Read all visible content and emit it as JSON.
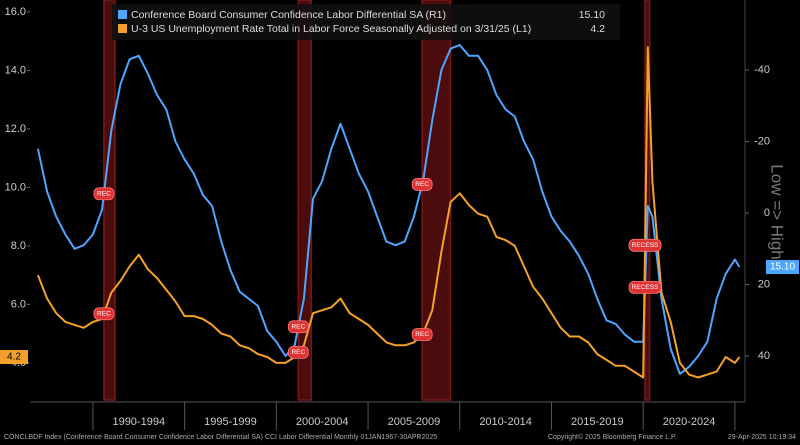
{
  "chart_data": {
    "type": "line",
    "legend": [
      {
        "name": "Conference Board Consumer Confidence Labor Differential SA  (R1)",
        "value": "15.10"
      },
      {
        "name": "U-3 US Unemployment Rate Total in Labor Force Seasonally Adjusted on 3/31/25 (L1)",
        "value": "4.2"
      }
    ],
    "x": [
      1987,
      1987.5,
      1988,
      1988.5,
      1989,
      1989.5,
      1990,
      1990.5,
      1991,
      1991.5,
      1992,
      1992.5,
      1993,
      1993.5,
      1994,
      1994.5,
      1995,
      1995.5,
      1996,
      1996.5,
      1997,
      1997.5,
      1998,
      1998.5,
      1999,
      1999.5,
      2000,
      2000.5,
      2001,
      2001.5,
      2002,
      2002.5,
      2003,
      2003.5,
      2004,
      2004.5,
      2005,
      2005.5,
      2006,
      2006.5,
      2007,
      2007.5,
      2008,
      2008.5,
      2009,
      2009.5,
      2010,
      2010.5,
      2011,
      2011.5,
      2012,
      2012.5,
      2013,
      2013.5,
      2014,
      2014.5,
      2015,
      2015.5,
      2016,
      2016.5,
      2017,
      2017.5,
      2018,
      2018.5,
      2019,
      2019.5,
      2020,
      2020.25,
      2020.5,
      2021,
      2021.5,
      2022,
      2022.5,
      2023,
      2023.5,
      2024,
      2024.5,
      2025,
      2025.25
    ],
    "series": [
      {
        "name": "Conference Board Consumer Confidence Labor Differential SA  (R1)",
        "color": "#4da6ff",
        "axis": "y2",
        "values": [
          -18,
          -6,
          1,
          6,
          10,
          9,
          6,
          -1,
          -23,
          -36,
          -43,
          -44,
          -39,
          -33,
          -29,
          -20,
          -15,
          -11,
          -5,
          -2,
          8,
          16,
          22,
          24,
          26,
          33,
          36,
          40,
          37,
          24,
          -4,
          -9,
          -18,
          -25,
          -18,
          -11,
          -6,
          1,
          8,
          9,
          8,
          1,
          -9,
          -26,
          -40,
          -46,
          -47,
          -44,
          -44,
          -40,
          -33,
          -29,
          -27,
          -20,
          -15,
          -6,
          1,
          5,
          8,
          12,
          17,
          24,
          30,
          31,
          34,
          36,
          36,
          -2,
          1,
          24,
          38,
          45,
          43,
          40,
          36,
          24,
          17,
          13,
          15.1
        ],
        "last_label": "15.10"
      },
      {
        "name": "U-3 US Unemployment Rate Total in Labor Force Seasonally Adjusted on 3/31/25 (L1)",
        "color": "#f5a02a",
        "values": [
          7.0,
          6.2,
          5.7,
          5.4,
          5.3,
          5.2,
          5.4,
          5.5,
          6.4,
          6.8,
          7.3,
          7.7,
          7.2,
          6.9,
          6.5,
          6.1,
          5.6,
          5.6,
          5.5,
          5.3,
          5.0,
          4.9,
          4.6,
          4.5,
          4.3,
          4.2,
          4.0,
          4.0,
          4.2,
          4.6,
          5.7,
          5.8,
          5.9,
          6.2,
          5.7,
          5.5,
          5.3,
          5.0,
          4.7,
          4.6,
          4.6,
          4.7,
          5.0,
          5.8,
          7.8,
          9.5,
          9.8,
          9.4,
          9.1,
          9.0,
          8.3,
          8.2,
          8.0,
          7.3,
          6.6,
          6.2,
          5.7,
          5.2,
          4.9,
          4.9,
          4.7,
          4.3,
          4.1,
          3.9,
          3.9,
          3.7,
          3.5,
          14.8,
          10.2,
          6.4,
          5.4,
          4.0,
          3.6,
          3.5,
          3.6,
          3.7,
          4.2,
          4.0,
          4.2
        ],
        "last_label": "4.2"
      }
    ],
    "xlim": [
      1986.57,
      2025.55
    ],
    "x_periods": [
      {
        "start": 1990,
        "end": 1995,
        "label": "1990-1994"
      },
      {
        "start": 1995,
        "end": 2000,
        "label": "1995-1999"
      },
      {
        "start": 2000,
        "end": 2005,
        "label": "2000-2004"
      },
      {
        "start": 2005,
        "end": 2010,
        "label": "2005-2009"
      },
      {
        "start": 2010,
        "end": 2015,
        "label": "2010-2014"
      },
      {
        "start": 2015,
        "end": 2020,
        "label": "2015-2019"
      },
      {
        "start": 2020,
        "end": 2025,
        "label": "2020-2024"
      }
    ],
    "ylim": [
      2.73,
      16.41
    ],
    "yticks": [
      {
        "value": 4,
        "label": "4.0"
      },
      {
        "value": 6,
        "label": "6.0"
      },
      {
        "value": 8,
        "label": "8.0"
      },
      {
        "value": 10,
        "label": "10.0"
      },
      {
        "value": 12,
        "label": "12.0"
      },
      {
        "value": 14,
        "label": "14.0"
      },
      {
        "value": 16,
        "label": "16.0"
      }
    ],
    "y2lim": [
      52.3,
      -59.6
    ],
    "y2ticks": [
      40,
      20,
      0,
      -20,
      -40
    ],
    "y2_note": "Low => High",
    "recessions": [
      {
        "start": 1990.6,
        "end": 1991.2,
        "label": "REC"
      },
      {
        "start": 2001.2,
        "end": 2001.9,
        "label": "REC"
      },
      {
        "start": 2007.95,
        "end": 2009.5,
        "label": "REC"
      },
      {
        "start": 2020.1,
        "end": 2020.35,
        "label": "RECESS"
      }
    ],
    "footer": {
      "source": "CONCLBDF Index (Conference Board Consumer Confidence Labor Differential SA) CCI Labor Differential  Monthly 01JAN1967-30APR2025",
      "copyright": "Copyright© 2025 Bloomberg Finance L.P.",
      "timestamp": "29-Apr-2025 10:19:34"
    }
  }
}
